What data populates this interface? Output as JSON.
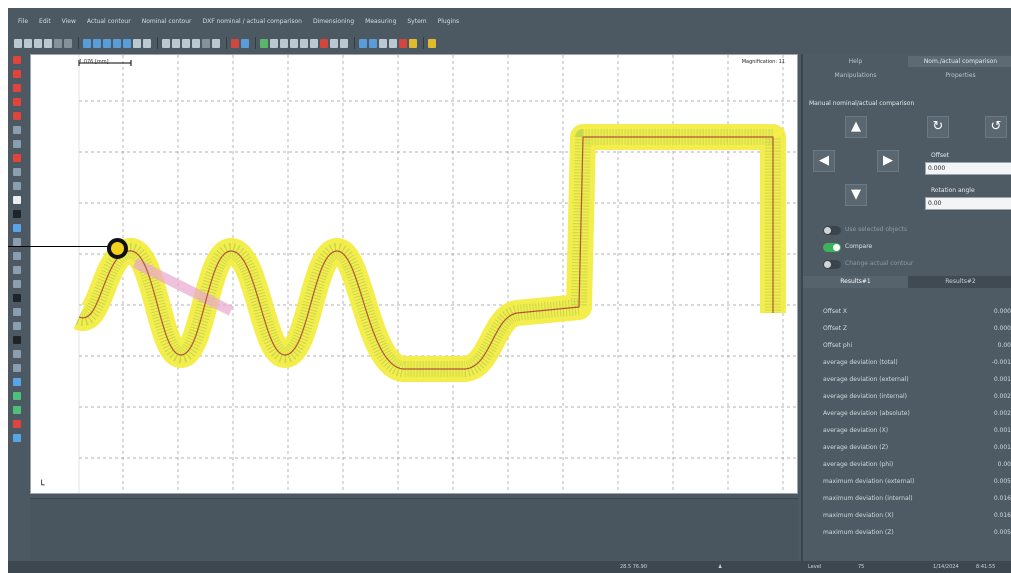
{
  "menu": [
    "File",
    "Edit",
    "View",
    "Actual contour",
    "Nominal contour",
    "DXF nominal / actual comparison",
    "Dimensioning",
    "Measuring",
    "Sytem",
    "Plugins"
  ],
  "canvas": {
    "scale_label": "1.076 [mm]",
    "magnification": "Magnification: 11"
  },
  "panel": {
    "tabs_top": [
      "Help",
      "Nom./actual comparison"
    ],
    "tabs_second": [
      "Manipulations",
      "Properties"
    ],
    "title": "Manual nominal/actual comparison",
    "offset_label": "Offset",
    "offset_value": "0.000",
    "rotation_label": "Rotation angle",
    "rotation_value": "0.00",
    "toggles": [
      {
        "label": "Use selected objects",
        "on": false
      },
      {
        "label": "Compare",
        "on": true
      },
      {
        "label": "Change actual contour",
        "on": false
      }
    ],
    "result_tabs": [
      "Results#1",
      "Results#2"
    ],
    "results": [
      {
        "label": "Offset X",
        "value": "0.000"
      },
      {
        "label": "Offset Z",
        "value": "0.000"
      },
      {
        "label": "Offset phi",
        "value": "0.00"
      },
      {
        "label": "average deviation (total)",
        "value": "-0.001"
      },
      {
        "label": "average deviation (external)",
        "value": "0.001"
      },
      {
        "label": "average deviation (internal)",
        "value": "0.002"
      },
      {
        "label": "Average deviation (absolute)",
        "value": "0.002"
      },
      {
        "label": "average deviation (X)",
        "value": "0.001"
      },
      {
        "label": "average deviation (Z)",
        "value": "0.001"
      },
      {
        "label": "average deviation (phi)",
        "value": "0.00"
      },
      {
        "label": "maximum deviation (external)",
        "value": "0.005"
      },
      {
        "label": "maximum deviation (internal)",
        "value": "0.016"
      },
      {
        "label": "maximum deviation (X)",
        "value": "0.016"
      },
      {
        "label": "maximum deviation (Z)",
        "value": "0.005"
      }
    ]
  },
  "status": {
    "coords": "28.5 76.90",
    "zoom": "Level",
    "zoom_percent": "75",
    "date": "1/14/2024",
    "time": "8:41:55"
  },
  "colors": {
    "tolerance_band": "#f3ec3a",
    "actual_contour": "#b4543c",
    "deviation_hairs": "#5aa046",
    "marker_fill": "#f2d21a"
  }
}
